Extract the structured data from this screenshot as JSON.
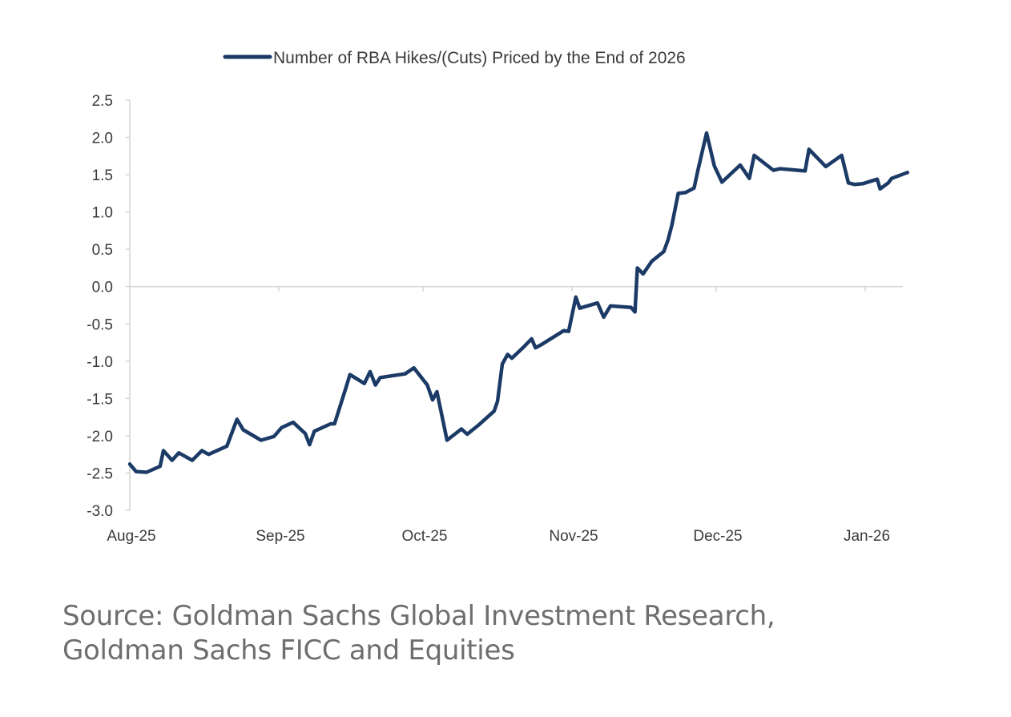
{
  "chart_data": {
    "type": "line",
    "title": "",
    "xlabel": "",
    "ylabel": "",
    "ylim": [
      -3.0,
      2.5
    ],
    "y_ticks": [
      "2.5",
      "2.0",
      "1.5",
      "1.0",
      "0.5",
      "0.0",
      "-0.5",
      "-1.0",
      "-1.5",
      "-2.0",
      "-2.5",
      "-3.0"
    ],
    "y_tick_values": [
      2.5,
      2.0,
      1.5,
      1.0,
      0.5,
      0.0,
      -0.5,
      -1.0,
      -1.5,
      -2.0,
      -2.5,
      -3.0
    ],
    "x_ticks": [
      "Aug-25",
      "Sep-25",
      "Oct-25",
      "Nov-25",
      "Dec-25",
      "Jan-26"
    ],
    "x_tick_days": [
      0,
      31,
      61,
      92,
      122,
      153
    ],
    "xlim_days": [
      0,
      161
    ],
    "x_unit": "days since 1 Aug 2025",
    "grid": false,
    "legend": "top-center",
    "series": [
      {
        "name": "Number of RBA Hikes/(Cuts) Priced by the End of 2026",
        "color": "#1b3a66",
        "x": [
          0,
          1.3,
          3.5,
          6.3,
          7,
          8.8,
          10.2,
          13,
          15,
          16.4,
          20.2,
          22.3,
          23.6,
          27.3,
          30,
          31.6,
          34,
          36.5,
          37.4,
          38.4,
          41.8,
          42.6,
          45,
          45.8,
          48.8,
          50,
          51.1,
          52.1,
          57.3,
          59.1,
          61.9,
          63,
          63.9,
          66,
          69,
          70.2,
          72.5,
          75.8,
          76.5,
          77.5,
          78.6,
          79.5,
          82.1,
          83.6,
          84.4,
          85.6,
          90.3,
          91.3,
          92.8,
          93.6,
          97.3,
          98.6,
          100,
          104.3,
          105.1,
          105.6,
          106.8,
          108.6,
          111.1,
          112,
          112.8,
          114.1,
          115.6,
          117.4,
          118.2,
          120,
          121.6,
          123.2,
          127,
          128.9,
          129.9,
          133.9,
          135.3,
          140.5,
          141.3,
          144.8,
          148.1,
          149.5,
          150.8,
          152.5,
          155.5,
          156.1,
          157.8,
          158.5,
          161.8
        ],
        "values": [
          -2.38,
          -2.48,
          -2.49,
          -2.41,
          -2.2,
          -2.33,
          -2.23,
          -2.33,
          -2.2,
          -2.25,
          -2.14,
          -1.78,
          -1.92,
          -2.06,
          -2.01,
          -1.89,
          -1.82,
          -1.97,
          -2.12,
          -1.94,
          -1.84,
          -1.84,
          -1.35,
          -1.18,
          -1.3,
          -1.14,
          -1.32,
          -1.22,
          -1.17,
          -1.09,
          -1.32,
          -1.52,
          -1.41,
          -2.06,
          -1.91,
          -1.98,
          -1.86,
          -1.67,
          -1.54,
          -1.04,
          -0.91,
          -0.96,
          -0.8,
          -0.7,
          -0.82,
          -0.78,
          -0.59,
          -0.6,
          -0.14,
          -0.29,
          -0.22,
          -0.41,
          -0.26,
          -0.28,
          -0.34,
          0.25,
          0.17,
          0.34,
          0.47,
          0.63,
          0.83,
          1.25,
          1.26,
          1.32,
          1.56,
          2.06,
          1.62,
          1.4,
          1.63,
          1.45,
          1.76,
          1.56,
          1.58,
          1.55,
          1.84,
          1.61,
          1.76,
          1.39,
          1.37,
          1.38,
          1.44,
          1.31,
          1.39,
          1.45,
          1.53
        ]
      }
    ],
    "source_lines": [
      "Source: Goldman Sachs Global Investment Research,",
      "Goldman Sachs FICC and Equities"
    ]
  }
}
